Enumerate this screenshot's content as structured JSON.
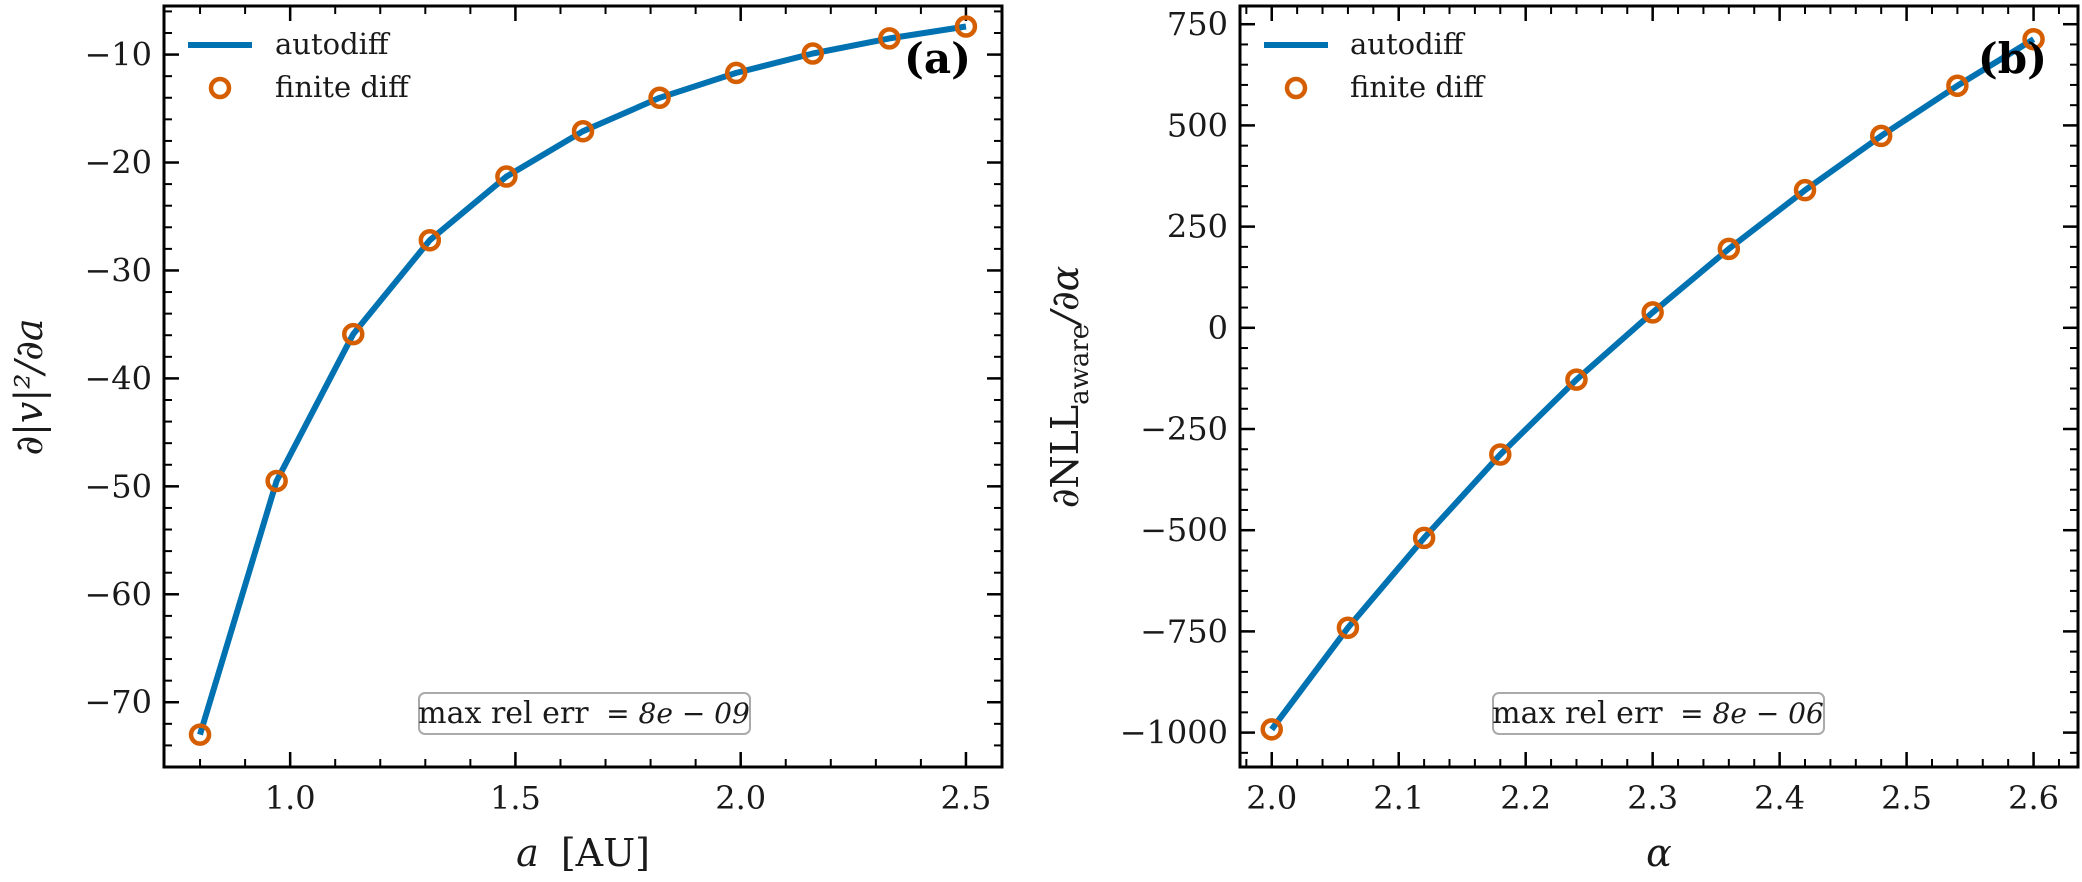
{
  "chart_data": [
    {
      "type": "line",
      "panel_label": "(a)",
      "xlabel_var": "a",
      "xlabel_unit": "[AU]",
      "ylabel": "∂|v|²/∂a",
      "xlim": [
        0.72,
        2.58
      ],
      "ylim": [
        -76,
        -5.5
      ],
      "xticks": [
        1.0,
        1.5,
        2.0,
        2.5
      ],
      "xtick_labels": [
        "1.0",
        "1.5",
        "2.0",
        "2.5"
      ],
      "yticks": [
        -70,
        -60,
        -50,
        -40,
        -30,
        -20,
        -10
      ],
      "ytick_labels": [
        "−70",
        "−60",
        "−50",
        "−40",
        "−30",
        "−20",
        "−10"
      ],
      "minor_x_step": 0.1,
      "minor_y_step": 2,
      "legend_position": "top-left",
      "series": [
        {
          "name": "autodiff",
          "kind": "line",
          "color": "#0072b2",
          "x": [
            0.8,
            0.97,
            1.14,
            1.31,
            1.48,
            1.65,
            1.82,
            1.99,
            2.16,
            2.33,
            2.5
          ],
          "y": [
            -73.0,
            -49.5,
            -35.9,
            -27.2,
            -21.3,
            -17.1,
            -14.0,
            -11.7,
            -9.9,
            -8.5,
            -7.4
          ]
        },
        {
          "name": "finite diff",
          "kind": "marker",
          "color": "#d55e00",
          "x": [
            0.8,
            0.97,
            1.14,
            1.31,
            1.48,
            1.65,
            1.82,
            1.99,
            2.16,
            2.33,
            2.5
          ],
          "y": [
            -73.0,
            -49.5,
            -35.9,
            -27.2,
            -21.3,
            -17.1,
            -14.0,
            -11.7,
            -9.9,
            -8.5,
            -7.4
          ]
        }
      ],
      "annotation": {
        "prefix": "max rel err",
        "value": "= 8e − 09"
      }
    },
    {
      "type": "line",
      "panel_label": "(b)",
      "xlabel_var": "α",
      "xlabel_unit": "",
      "ylabel": "∂NLL_aware/∂α",
      "ylabel_main": "∂NLL",
      "ylabel_sub": "aware",
      "ylabel_tail": "/∂α",
      "xlim": [
        1.975,
        2.635
      ],
      "ylim": [
        -1085,
        795
      ],
      "xticks": [
        2.0,
        2.1,
        2.2,
        2.3,
        2.4,
        2.5,
        2.6
      ],
      "xtick_labels": [
        "2.0",
        "2.1",
        "2.2",
        "2.3",
        "2.4",
        "2.5",
        "2.6"
      ],
      "yticks": [
        -1000,
        -750,
        -500,
        -250,
        0,
        250,
        500,
        750
      ],
      "ytick_labels": [
        "−1000",
        "−750",
        "−500",
        "−250",
        "0",
        "250",
        "500",
        "750"
      ],
      "minor_x_step": 0.02,
      "minor_y_step": 50,
      "legend_position": "top-left",
      "series": [
        {
          "name": "autodiff",
          "kind": "line",
          "color": "#0072b2",
          "x": [
            2.0,
            2.06,
            2.12,
            2.18,
            2.24,
            2.3,
            2.36,
            2.42,
            2.48,
            2.54,
            2.6
          ],
          "y": [
            -992,
            -741,
            -519,
            -313,
            -128,
            38,
            195,
            340,
            474,
            598,
            713
          ]
        },
        {
          "name": "finite diff",
          "kind": "marker",
          "color": "#d55e00",
          "x": [
            2.0,
            2.06,
            2.12,
            2.18,
            2.24,
            2.3,
            2.36,
            2.42,
            2.48,
            2.54,
            2.6
          ],
          "y": [
            -992,
            -741,
            -519,
            -313,
            -128,
            38,
            195,
            340,
            474,
            598,
            713
          ]
        }
      ],
      "annotation": {
        "prefix": "max rel err",
        "value": "= 8e − 06"
      }
    }
  ]
}
